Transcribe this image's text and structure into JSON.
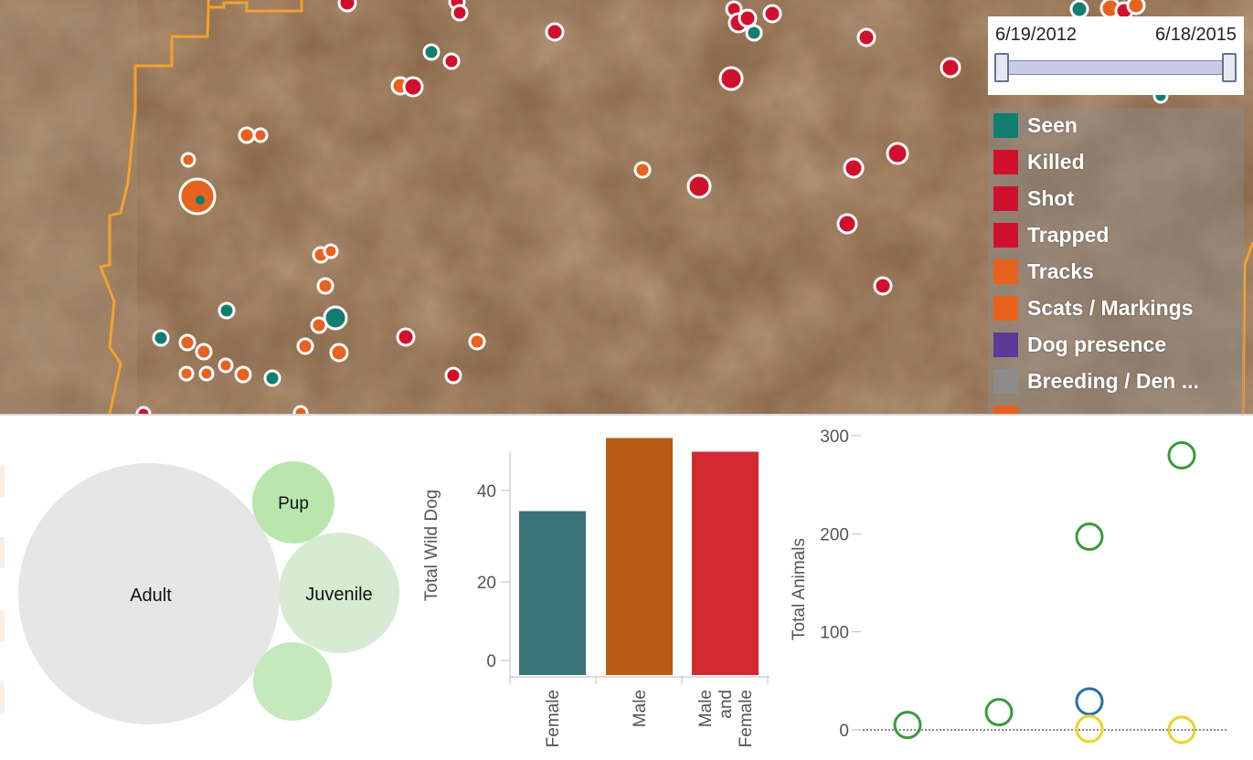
{
  "date_range": {
    "start": "6/19/2012",
    "end": "6/18/2015"
  },
  "legend": [
    {
      "label": "Seen",
      "color": "#117e70"
    },
    {
      "label": "Killed",
      "color": "#d0112e"
    },
    {
      "label": "Shot",
      "color": "#d0112e"
    },
    {
      "label": "Trapped",
      "color": "#d0112e"
    },
    {
      "label": "Tracks",
      "color": "#e7611f"
    },
    {
      "label": "Scats / Markings",
      "color": "#e7611f"
    },
    {
      "label": "Dog presence",
      "color": "#5b3a98"
    },
    {
      "label": "Breeding / Den ...",
      "color": "#8c8c8c"
    },
    {
      "label": "",
      "color": "#e7611f"
    }
  ],
  "age_bubbles": [
    {
      "label": "Adult",
      "color": "#e6e6e6"
    },
    {
      "label": "Pup",
      "color": "#b9e6ad"
    },
    {
      "label": "Juvenile",
      "color": "#d7ebd3"
    },
    {
      "label": "",
      "color": "#c6e8bd"
    }
  ],
  "chart_data": [
    {
      "type": "bar",
      "ylabel": "Total Wild Dog",
      "categories": [
        "Female",
        "Male",
        "Male and Female"
      ],
      "values": [
        35.5,
        51.5,
        48.5
      ],
      "colors": [
        "#3b737a",
        "#b85b17",
        "#d32a31"
      ],
      "yticks": [
        0,
        20,
        40
      ],
      "ylim": [
        0,
        52
      ]
    },
    {
      "type": "scatter",
      "ylabel": "Total Animals",
      "yticks": [
        0,
        100,
        200,
        300
      ],
      "ylim": [
        0,
        300
      ],
      "points": [
        {
          "x": 1,
          "y": 5,
          "color": "#3a9a3a"
        },
        {
          "x": 2,
          "y": 18,
          "color": "#3a9a3a"
        },
        {
          "x": 3,
          "y": 197,
          "color": "#3a9a3a"
        },
        {
          "x": 3,
          "y": 29,
          "color": "#2b6ea8"
        },
        {
          "x": 3,
          "y": 1,
          "color": "#e6d52c"
        },
        {
          "x": 4,
          "y": 280,
          "color": "#3a9a3a"
        },
        {
          "x": 4,
          "y": 0,
          "color": "#e6d52c"
        }
      ]
    }
  ]
}
